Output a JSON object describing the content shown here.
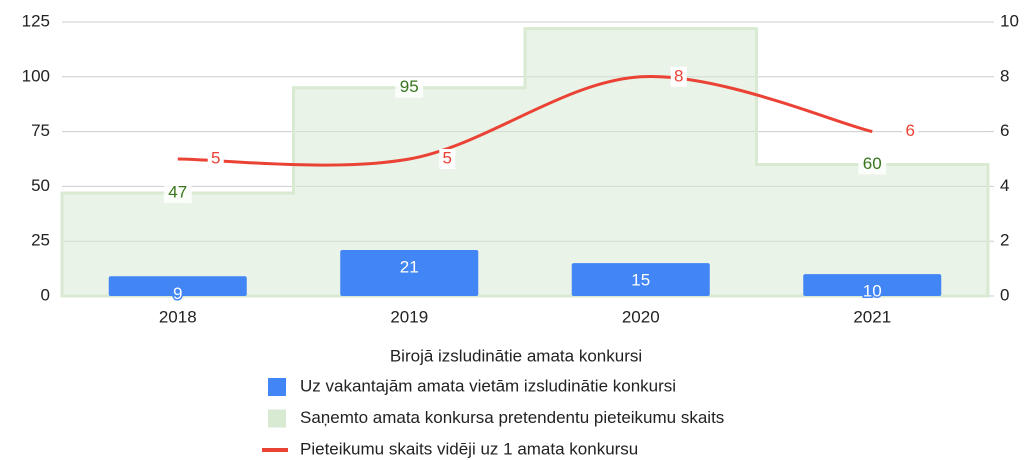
{
  "chart_data": {
    "type": "combo",
    "categories": [
      "2018",
      "2019",
      "2020",
      "2021"
    ],
    "series": [
      {
        "name": "Uz vakantajām amata vietām izsludinātie konkursi",
        "kind": "bar",
        "color": "#4285f4",
        "values": [
          9,
          21,
          15,
          10
        ]
      },
      {
        "name": "Saņemto amata konkursa pretendentu pieteikumu skaits",
        "kind": "stepped-area",
        "color": "#d9ead3",
        "values": [
          47,
          95,
          122,
          60
        ],
        "value_labels": [
          "47",
          "95",
          null,
          "60"
        ]
      },
      {
        "name": "Pieteikumu skaits vidēji uz 1 amata konkursu",
        "kind": "line",
        "axis": "y2",
        "color": "#ea4335",
        "values": [
          5,
          5,
          8,
          6
        ]
      }
    ],
    "legend_title": "Birojā izsludinātie amata konkursi",
    "ylim": [
      0,
      125
    ],
    "yticks": [
      0,
      25,
      50,
      75,
      100,
      125
    ],
    "y2lim": [
      0,
      10
    ],
    "y2ticks": [
      0,
      2,
      4,
      6,
      8,
      10
    ],
    "grid": true,
    "legend": "bottom"
  }
}
